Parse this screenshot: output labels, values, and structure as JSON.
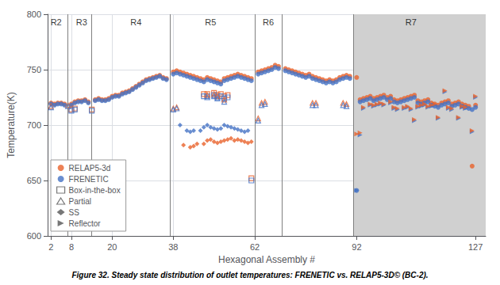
{
  "chart_data": {
    "type": "scatter",
    "title": "Figure 32. Steady state distribution of outlet temperatures: FRENETIC vs. RELAP5-3D© (BC-2).",
    "x_label": "Hexagonal Assembly #",
    "y_label": "Temperature(K)",
    "xlim": [
      1,
      130
    ],
    "ylim": [
      600,
      800
    ],
    "xticks": [
      2,
      8,
      20,
      38,
      62,
      92,
      127
    ],
    "yticks": [
      600,
      650,
      700,
      750,
      800
    ],
    "grid": true,
    "legend": "lower left",
    "annotations": [
      {
        "text": "R2",
        "x": 3.5,
        "y": 797
      },
      {
        "text": "R3",
        "x": 11,
        "y": 797
      },
      {
        "text": "R4",
        "x": 27,
        "y": 797
      },
      {
        "text": "R5",
        "x": 49,
        "y": 797
      },
      {
        "text": "R6",
        "x": 66,
        "y": 797
      },
      {
        "text": "R7",
        "x": 108,
        "y": 797
      }
    ],
    "vlines": {
      "x": [
        7,
        14,
        37,
        62,
        70,
        91
      ],
      "color": "gray"
    },
    "bands": [
      {
        "x0": 91,
        "x1": 130,
        "color": "#d0d0d0"
      }
    ],
    "series": [
      {
        "name": "RELAP5-3d",
        "color": "#E8622A",
        "marker": "circle",
        "x": [
          2,
          3,
          4,
          5,
          6,
          8,
          9,
          10,
          11,
          12,
          13,
          15,
          16,
          17,
          18,
          19,
          20,
          21,
          22,
          23,
          24,
          25,
          26,
          27,
          28,
          29,
          30,
          31,
          32,
          33,
          34,
          35,
          36,
          38,
          39,
          40,
          41,
          42,
          43,
          44,
          45,
          46,
          47,
          48,
          49,
          50,
          51,
          52,
          53,
          54,
          55,
          56,
          57,
          58,
          59,
          60,
          61,
          63,
          64,
          65,
          66,
          67,
          68,
          69,
          71,
          72,
          73,
          74,
          75,
          76,
          77,
          78,
          79,
          80,
          81,
          82,
          83,
          84,
          85,
          86,
          87,
          88,
          89,
          90,
          92,
          93,
          94,
          95,
          96,
          97,
          98,
          99,
          100,
          101,
          102,
          103,
          104,
          105,
          106,
          107,
          108,
          109,
          110,
          111,
          112,
          113,
          114,
          115,
          116,
          117,
          118,
          119,
          120,
          121,
          122,
          123,
          124,
          125,
          126,
          127
        ],
        "values": [
          720,
          719,
          720,
          720,
          719,
          719,
          721,
          722,
          722,
          723,
          721,
          723,
          724,
          723,
          723,
          724,
          726,
          727,
          727,
          729,
          730,
          731,
          733,
          735,
          737,
          739,
          741,
          742,
          743,
          744,
          745,
          743,
          742,
          748,
          749,
          748,
          747,
          746,
          745,
          744,
          743,
          742,
          741,
          743,
          742,
          741,
          740,
          739,
          742,
          743,
          744,
          745,
          746,
          745,
          744,
          743,
          742,
          748,
          749,
          750,
          751,
          752,
          754,
          753,
          751,
          750,
          749,
          748,
          747,
          746,
          745,
          746,
          744,
          743,
          742,
          741,
          740,
          741,
          740,
          741,
          743,
          744,
          745,
          744,
          743,
          723,
          724,
          725,
          726,
          724,
          725,
          726,
          727,
          725,
          726,
          723,
          722,
          723,
          724,
          725,
          726,
          727,
          722,
          721,
          722,
          723,
          720,
          719,
          718,
          720,
          721,
          722,
          719,
          720,
          721,
          719,
          718,
          717,
          663,
          718
        ]
      },
      {
        "name": "FRENETIC",
        "color": "#4472C4",
        "marker": "circle",
        "x": [
          2,
          3,
          4,
          5,
          6,
          8,
          9,
          10,
          11,
          12,
          13,
          15,
          16,
          17,
          18,
          19,
          20,
          21,
          22,
          23,
          24,
          25,
          26,
          27,
          28,
          29,
          30,
          31,
          32,
          33,
          34,
          35,
          36,
          38,
          39,
          40,
          41,
          42,
          43,
          44,
          45,
          46,
          47,
          48,
          49,
          50,
          51,
          52,
          53,
          54,
          55,
          56,
          57,
          58,
          59,
          60,
          61,
          63,
          64,
          65,
          66,
          67,
          68,
          69,
          71,
          72,
          73,
          74,
          75,
          76,
          77,
          78,
          79,
          80,
          81,
          82,
          83,
          84,
          85,
          86,
          87,
          88,
          89,
          90,
          92,
          93,
          94,
          95,
          96,
          97,
          98,
          99,
          100,
          101,
          102,
          103,
          104,
          105,
          106,
          107,
          108,
          109,
          110,
          111,
          112,
          113,
          114,
          115,
          116,
          117,
          118,
          119,
          120,
          121,
          122,
          123,
          124,
          125,
          126,
          127
        ],
        "values": [
          719,
          718,
          719,
          719,
          718,
          718,
          720,
          721,
          721,
          722,
          720,
          722,
          723,
          722,
          722,
          723,
          725,
          726,
          726,
          728,
          729,
          730,
          732,
          734,
          736,
          738,
          740,
          741,
          742,
          743,
          744,
          742,
          741,
          746,
          747,
          746,
          745,
          744,
          743,
          742,
          741,
          740,
          739,
          741,
          740,
          739,
          738,
          737,
          740,
          741,
          742,
          743,
          744,
          743,
          742,
          741,
          740,
          746,
          747,
          748,
          749,
          750,
          752,
          751,
          749,
          748,
          747,
          746,
          745,
          744,
          743,
          744,
          742,
          741,
          740,
          739,
          738,
          739,
          738,
          739,
          741,
          742,
          743,
          742,
          641,
          721,
          722,
          723,
          724,
          722,
          723,
          724,
          725,
          723,
          724,
          721,
          720,
          721,
          722,
          723,
          724,
          725,
          720,
          719,
          720,
          721,
          718,
          717,
          716,
          718,
          719,
          720,
          717,
          718,
          719,
          717,
          716,
          715,
          714,
          716
        ]
      },
      {
        "name": "Box-in-the-box",
        "color": "#E8622A",
        "marker": "square-open",
        "x": [
          8,
          9,
          14,
          47,
          48,
          50,
          51,
          52,
          53,
          54,
          61
        ],
        "values": [
          714,
          715,
          714,
          728,
          728,
          729,
          727,
          728,
          726,
          727,
          652
        ]
      },
      {
        "name": "Box-in-the-box",
        "color": "#4472C4",
        "marker": "square-open",
        "x": [
          8,
          9,
          14,
          47,
          48,
          50,
          51,
          52,
          53,
          54,
          61
        ],
        "values": [
          713,
          714,
          713,
          726,
          726,
          727,
          725,
          726,
          724,
          725,
          650
        ]
      },
      {
        "name": "Partial",
        "color": "#E8622A",
        "marker": "triangle-open",
        "x": [
          2,
          7,
          38,
          39,
          48,
          50,
          51,
          53,
          63,
          64,
          65,
          79,
          80,
          88,
          89
        ],
        "values": [
          717,
          718,
          715,
          716,
          727,
          728,
          726,
          723,
          706,
          720,
          721,
          720,
          720,
          720,
          719
        ]
      },
      {
        "name": "Partial",
        "color": "#4472C4",
        "marker": "triangle-open",
        "x": [
          2,
          7,
          38,
          39,
          48,
          50,
          51,
          53,
          63,
          64,
          65,
          79,
          80,
          88,
          89
        ],
        "values": [
          716,
          717,
          714,
          715,
          725,
          726,
          724,
          721,
          704,
          718,
          719,
          718,
          718,
          718,
          717
        ]
      },
      {
        "name": "SS",
        "color": "#4472C4",
        "marker": "diamond",
        "x": [
          40,
          42,
          43,
          44,
          46,
          47,
          48,
          49,
          50,
          51,
          52,
          53,
          54,
          55,
          56,
          57,
          58,
          59,
          60
        ],
        "values": [
          700,
          695,
          694,
          695,
          695,
          698,
          700,
          698,
          697,
          696,
          697,
          700,
          699,
          698,
          697,
          696,
          695,
          694,
          695
        ]
      },
      {
        "name": "SS",
        "color": "#E8622A",
        "marker": "diamond",
        "x": [
          41,
          43,
          44,
          45,
          47,
          48,
          49,
          50,
          51,
          52,
          53,
          54,
          55,
          56,
          57,
          58,
          59,
          60,
          61
        ],
        "values": [
          682,
          680,
          681,
          683,
          683,
          686,
          687,
          685,
          684,
          685,
          686,
          687,
          688,
          686,
          687,
          686,
          685,
          684,
          685
        ]
      },
      {
        "name": "Reflector",
        "color": "#4472C4",
        "marker": "triangle-right",
        "x": [
          92,
          93,
          94,
          96,
          97,
          98,
          99,
          100,
          102,
          103,
          104,
          106,
          107,
          108,
          109,
          110,
          111,
          112,
          113,
          114,
          115,
          116,
          118,
          119,
          120,
          122,
          123,
          124,
          126,
          127
        ],
        "values": [
          641,
          691,
          715,
          718,
          717,
          718,
          719,
          718,
          720,
          715,
          714,
          715,
          716,
          714,
          704,
          716,
          717,
          718,
          716,
          717,
          718,
          706,
          730,
          715,
          714,
          706,
          716,
          715,
          694,
          725
        ]
      },
      {
        "name": "Reflector",
        "color": "#E8622A",
        "marker": "triangle-right",
        "x": [
          92,
          93,
          94,
          96,
          97,
          98,
          99,
          100,
          102,
          103,
          104,
          106,
          107,
          108,
          109,
          110,
          111,
          112,
          113,
          114,
          115,
          116,
          118,
          119,
          120,
          122,
          123,
          124,
          126,
          127
        ],
        "values": [
          692,
          693,
          716,
          719,
          718,
          719,
          720,
          719,
          721,
          716,
          715,
          716,
          717,
          715,
          705,
          717,
          718,
          719,
          717,
          718,
          719,
          707,
          731,
          716,
          715,
          707,
          717,
          716,
          695,
          726
        ]
      }
    ]
  }
}
